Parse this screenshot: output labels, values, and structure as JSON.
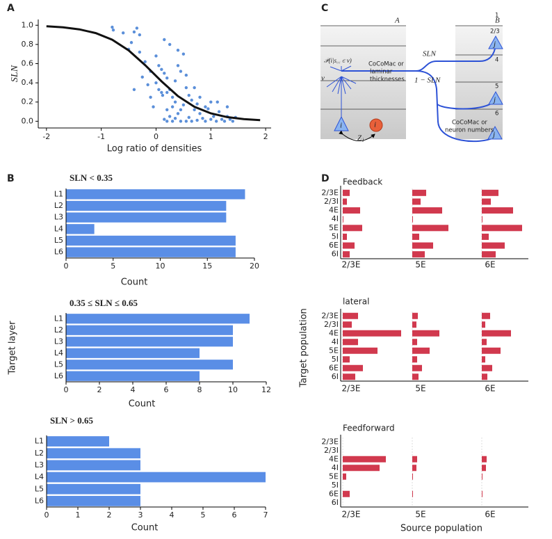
{
  "panel_labels": [
    "A",
    "B",
    "C",
    "D"
  ],
  "diagram": {
    "area_a": "A",
    "area_b": "B",
    "layers": [
      "1",
      "2/3",
      "4",
      "5",
      "6"
    ],
    "source_neuron": "i",
    "target_neuron": "j",
    "probability": "𝒫(i|s꜀꜀ ∈ ν)",
    "nu": "ν",
    "left_note": [
      "CoCoMac or",
      "laminar",
      "thicknesses"
    ],
    "sln": "SLN",
    "one_minus_sln": "1 − SLN",
    "right_note": [
      "CoCoMac or",
      "neuron numbers"
    ],
    "z": "Z",
    "z_sub": "i"
  },
  "chart_data": [
    {
      "type": "scatter",
      "xlabel": "Log ratio of densities",
      "ylabel": "SLN",
      "xlim": [
        -2.15,
        2.1
      ],
      "ylim": [
        -0.07,
        1.06
      ],
      "xticks": [
        -2,
        -1,
        0,
        1,
        2
      ],
      "yticks": [
        {
          "value": 0,
          "label": "0.0"
        },
        0.2,
        0.4,
        0.6,
        0.8,
        {
          "value": 1,
          "label": "1.0"
        }
      ],
      "series": [
        {
          "type": "scatter",
          "color": "#5b8fd9",
          "x": [
            -0.8,
            -0.78,
            -0.6,
            -0.45,
            -0.4,
            -0.35,
            -0.3,
            -0.5,
            -0.3,
            -0.2,
            -0.1,
            0.0,
            0.05,
            0.1,
            0.15,
            0.2,
            -0.25,
            -0.15,
            0.0,
            0.05,
            0.1,
            0.12,
            0.2,
            0.25,
            0.3,
            0.35,
            0.4,
            0.45,
            0.5,
            0.55,
            0.3,
            0.2,
            0.15,
            0.25,
            0.3,
            0.35,
            0.4,
            0.45,
            0.5,
            0.55,
            0.6,
            0.65,
            0.7,
            0.75,
            0.8,
            0.85,
            0.9,
            0.95,
            1.0,
            1.05,
            1.1,
            1.15,
            1.2,
            1.25,
            1.3,
            1.35,
            1.4,
            1.45,
            -0.05,
            -0.4,
            0.6,
            0.7,
            0.8,
            0.9,
            1.0,
            0.45,
            0.65,
            0.75,
            0.2,
            0.35,
            0.15,
            0.25,
            0.4,
            -0.1,
            0.55,
            1.12,
            1.3
          ],
          "values": [
            0.98,
            0.95,
            0.92,
            0.82,
            0.93,
            0.97,
            0.9,
            0.75,
            0.72,
            0.62,
            0.52,
            0.68,
            0.58,
            0.54,
            0.5,
            0.45,
            0.46,
            0.38,
            0.4,
            0.33,
            0.3,
            0.27,
            0.3,
            0.33,
            0.25,
            0.2,
            0.58,
            0.52,
            0.7,
            0.48,
            0.15,
            0.12,
            0.02,
            0.05,
            0.0,
            0.03,
            0.08,
            0.12,
            0.17,
            0.0,
            0.04,
            0.22,
            0.35,
            0.18,
            0.08,
            0.03,
            0.0,
            0.13,
            0.2,
            0.05,
            0.0,
            0.1,
            0.02,
            0.0,
            0.05,
            0.02,
            0.0,
            0.04,
            0.15,
            0.33,
            0.27,
            0.12,
            0.25,
            0.15,
            0.02,
            0.0,
            0.0,
            0.01,
            0.0,
            0.42,
            0.85,
            0.8,
            0.74,
            0.25,
            0.35,
            0.2,
            0.15
          ]
        },
        {
          "type": "line",
          "color": "#111111",
          "x": [
            -2.0,
            -1.7,
            -1.4,
            -1.1,
            -0.8,
            -0.5,
            -0.2,
            0.1,
            0.4,
            0.7,
            1.0,
            1.3,
            1.6,
            1.9
          ],
          "values": [
            0.989,
            0.978,
            0.957,
            0.918,
            0.849,
            0.738,
            0.585,
            0.415,
            0.262,
            0.151,
            0.082,
            0.043,
            0.022,
            0.011
          ]
        }
      ]
    },
    {
      "type": "hbar",
      "title": "SLN < 0.35",
      "categories": [
        "L1",
        "L2",
        "L3",
        "L4",
        "L5",
        "L6"
      ],
      "values": [
        19,
        17,
        17,
        3,
        18,
        18
      ],
      "color": "#5a8ee6",
      "xlim": [
        0,
        20
      ],
      "xticks": [
        0,
        5,
        10,
        15,
        20
      ],
      "xlabel": "Count"
    },
    {
      "type": "hbar",
      "title": "0.35 ≤ SLN ≤ 0.65",
      "categories": [
        "L1",
        "L2",
        "L3",
        "L4",
        "L5",
        "L6"
      ],
      "values": [
        11,
        10,
        10,
        8,
        10,
        8
      ],
      "color": "#5a8ee6",
      "xlim": [
        0,
        12
      ],
      "xticks": [
        0,
        2,
        4,
        6,
        8,
        10,
        12
      ],
      "xlabel": "Count",
      "ylabel": "Target layer"
    },
    {
      "type": "hbar",
      "title": "SLN > 0.65",
      "categories": [
        "L1",
        "L2",
        "L3",
        "L4",
        "L5",
        "L6"
      ],
      "values": [
        2,
        3,
        3,
        7,
        3,
        3
      ],
      "color": "#5a8ee6",
      "xlim": [
        0,
        7
      ],
      "xticks": [
        0,
        1,
        2,
        3,
        4,
        5,
        6,
        7
      ],
      "xlabel": "Count"
    },
    {
      "type": "grouped-hbar",
      "title": "Feedback",
      "color": "#d1394e",
      "categories": [
        "2/3E",
        "2/3I",
        "4E",
        "4I",
        "5E",
        "5I",
        "6E",
        "6I"
      ],
      "series": [
        {
          "name": "2/3E",
          "values": [
            10,
            6,
            25,
            1,
            28,
            6,
            17,
            10
          ]
        },
        {
          "name": "5E",
          "values": [
            20,
            12,
            43,
            1,
            52,
            10,
            30,
            18
          ]
        },
        {
          "name": "6E",
          "values": [
            24,
            13,
            45,
            1,
            58,
            10,
            33,
            20
          ]
        }
      ]
    },
    {
      "type": "grouped-hbar",
      "title": "lateral",
      "color": "#d1394e",
      "ylabel": "Target population",
      "categories": [
        "2/3E",
        "2/3I",
        "4E",
        "4I",
        "5E",
        "5I",
        "6E",
        "6I"
      ],
      "series": [
        {
          "name": "2/3E",
          "values": [
            22,
            13,
            84,
            22,
            50,
            10,
            29,
            18
          ]
        },
        {
          "name": "5E",
          "values": [
            8,
            6,
            39,
            7,
            25,
            7,
            14,
            9
          ]
        },
        {
          "name": "6E",
          "values": [
            12,
            5,
            42,
            7,
            27,
            5,
            15,
            8
          ]
        }
      ]
    },
    {
      "type": "grouped-hbar",
      "title": "Feedforward",
      "color": "#d1394e",
      "xlabel": "Source population",
      "categories": [
        "2/3E",
        "2/3I",
        "4E",
        "4I",
        "5E",
        "5I",
        "6E",
        "6I"
      ],
      "series": [
        {
          "name": "2/3E",
          "values": [
            0,
            0,
            62,
            53,
            5,
            0,
            10,
            0
          ]
        },
        {
          "name": "5E",
          "values": [
            0,
            0,
            7,
            6,
            1,
            0,
            1,
            0
          ]
        },
        {
          "name": "6E",
          "values": [
            0,
            0,
            7,
            6,
            1,
            0,
            1,
            0
          ]
        }
      ]
    }
  ]
}
